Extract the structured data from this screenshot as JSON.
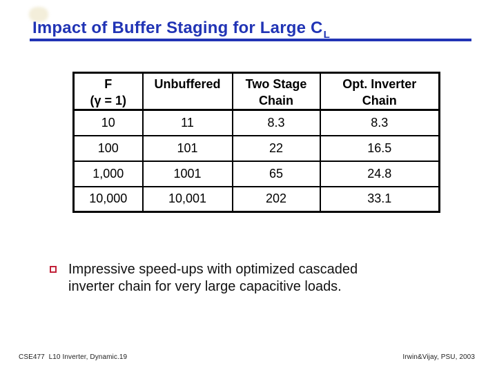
{
  "title": {
    "text": "Impact of Buffer Staging for Large C",
    "subscript": "L",
    "color": "#2134b5"
  },
  "table": {
    "headers": [
      {
        "line1": "F",
        "line2": "(γ = 1)"
      },
      {
        "line1": "Unbuffered",
        "line2": ""
      },
      {
        "line1": "Two Stage",
        "line2": "Chain"
      },
      {
        "line1": "Opt. Inverter",
        "line2": "Chain"
      }
    ],
    "rows": [
      [
        "10",
        "11",
        "8.3",
        "8.3"
      ],
      [
        "100",
        "101",
        "22",
        "16.5"
      ],
      [
        "1,000",
        "1001",
        "65",
        "24.8"
      ],
      [
        "10,000",
        "10,001",
        "202",
        "33.1"
      ]
    ]
  },
  "chart_data": {
    "type": "table",
    "title": "Impact of Buffer Staging for Large CL",
    "columns": [
      "F (γ = 1)",
      "Unbuffered",
      "Two Stage Chain",
      "Opt. Inverter Chain"
    ],
    "rows": [
      [
        10,
        11,
        8.3,
        8.3
      ],
      [
        100,
        101,
        22,
        16.5
      ],
      [
        1000,
        1001,
        65,
        24.8
      ],
      [
        10000,
        10001,
        202,
        33.1
      ]
    ]
  },
  "bullet": {
    "marker_color": "#c22038",
    "lines": [
      "Impressive speed-ups with optimized cascaded",
      "inverter chain for very large capacitive loads."
    ]
  },
  "footer": {
    "left": "CSE477  L10 Inverter, Dynamic.19",
    "right": "Irwin&Vijay, PSU, 2003"
  }
}
